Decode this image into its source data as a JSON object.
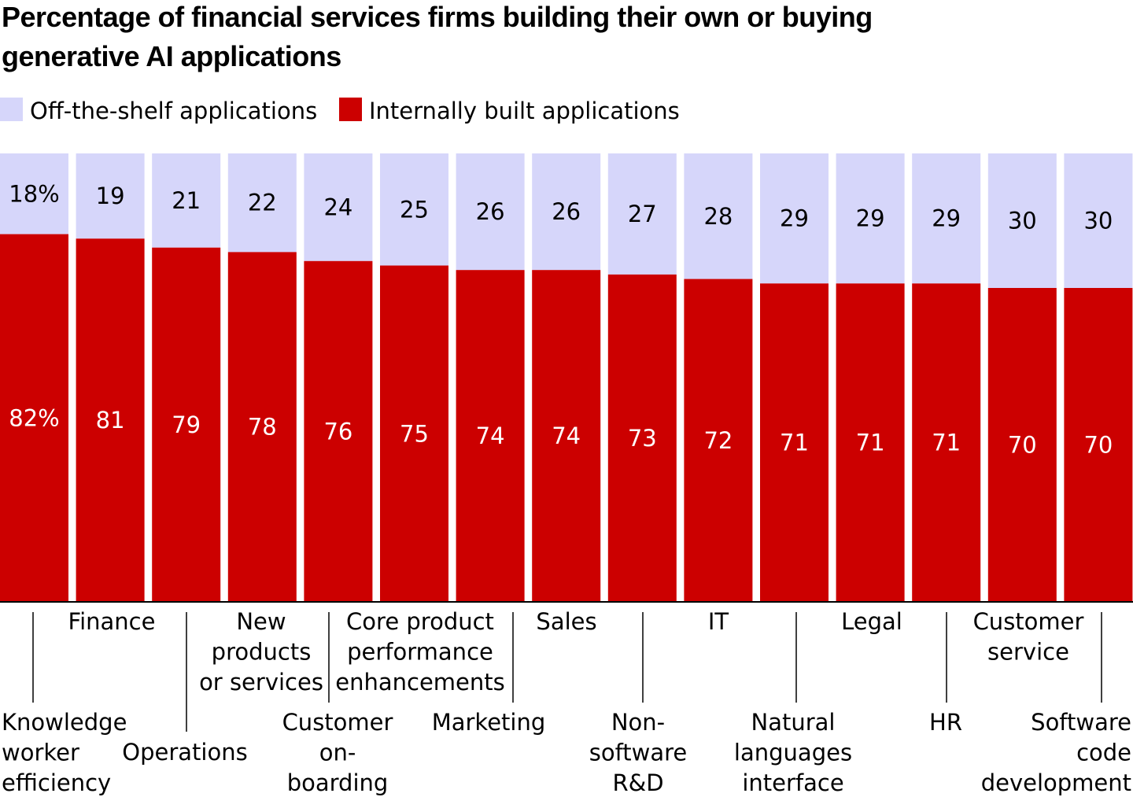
{
  "chart_data": {
    "type": "bar",
    "stacked": true,
    "title": "Percentage of financial services firms building their own or buying generative AI applications",
    "title_lines": [
      "Percentage of financial services firms building their own or buying",
      "generative AI applications"
    ],
    "legend": {
      "placement": "top-left"
    },
    "colors": {
      "off_the_shelf": "#d6d6fa",
      "internal": "#cc0000",
      "axis": "#000000"
    },
    "ylim": [
      0,
      100
    ],
    "grid": false,
    "categories": [
      [
        "Knowledge",
        "worker",
        "efficiency"
      ],
      [
        "Finance"
      ],
      [
        "Operations"
      ],
      [
        "New",
        "products",
        "or services"
      ],
      [
        "Customer",
        "on-",
        "boarding"
      ],
      [
        "Core product",
        "performance",
        "enhancements"
      ],
      [
        "Marketing"
      ],
      [
        "Sales"
      ],
      [
        "Non-",
        "software",
        "R&D"
      ],
      [
        "IT"
      ],
      [
        "Natural",
        "languages",
        "interface"
      ],
      [
        "Legal"
      ],
      [
        "HR"
      ],
      [
        "Customer",
        "service"
      ],
      [
        "Software",
        "code",
        "development"
      ]
    ],
    "series": [
      {
        "name": "Off-the-shelf applications",
        "values": [
          18,
          19,
          21,
          22,
          24,
          25,
          26,
          26,
          27,
          28,
          29,
          29,
          29,
          30,
          30
        ],
        "labels": [
          "18%",
          "19",
          "21",
          "22",
          "24",
          "25",
          "26",
          "26",
          "27",
          "28",
          "29",
          "29",
          "29",
          "30",
          "30"
        ]
      },
      {
        "name": "Internally built applications",
        "values": [
          82,
          81,
          79,
          78,
          76,
          75,
          74,
          74,
          73,
          72,
          71,
          71,
          71,
          70,
          70
        ],
        "labels": [
          "82%",
          "81",
          "79",
          "78",
          "76",
          "75",
          "74",
          "74",
          "73",
          "72",
          "71",
          "71",
          "71",
          "70",
          "70"
        ]
      }
    ]
  }
}
